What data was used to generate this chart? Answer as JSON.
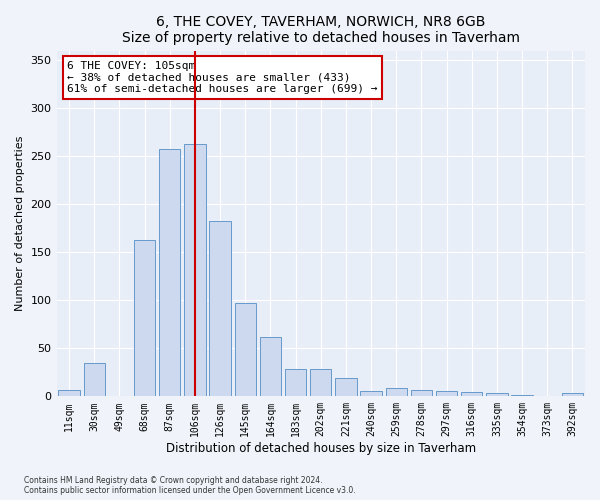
{
  "title": "6, THE COVEY, TAVERHAM, NORWICH, NR8 6GB",
  "subtitle": "Size of property relative to detached houses in Taverham",
  "xlabel": "Distribution of detached houses by size in Taverham",
  "ylabel": "Number of detached properties",
  "categories": [
    "11sqm",
    "30sqm",
    "49sqm",
    "68sqm",
    "87sqm",
    "106sqm",
    "126sqm",
    "145sqm",
    "164sqm",
    "183sqm",
    "202sqm",
    "221sqm",
    "240sqm",
    "259sqm",
    "278sqm",
    "297sqm",
    "316sqm",
    "335sqm",
    "354sqm",
    "373sqm",
    "392sqm"
  ],
  "values": [
    7,
    35,
    0,
    163,
    258,
    263,
    183,
    97,
    62,
    28,
    28,
    19,
    6,
    9,
    7,
    6,
    5,
    3,
    1,
    0,
    3
  ],
  "bar_color": "#ccd9ee",
  "bar_edge_color": "#6699cc",
  "vline_x": 5,
  "vline_color": "#cc0000",
  "annotation_text": "6 THE COVEY: 105sqm\n← 38% of detached houses are smaller (433)\n61% of semi-detached houses are larger (699) →",
  "annotation_box_color": "#ffffff",
  "annotation_box_edge_color": "#cc0000",
  "ylim": [
    0,
    360
  ],
  "yticks": [
    0,
    50,
    100,
    150,
    200,
    250,
    300,
    350
  ],
  "footer_line1": "Contains HM Land Registry data © Crown copyright and database right 2024.",
  "footer_line2": "Contains public sector information licensed under the Open Government Licence v3.0.",
  "bg_color": "#f0f4fa",
  "plot_bg_color": "#e8eef8"
}
